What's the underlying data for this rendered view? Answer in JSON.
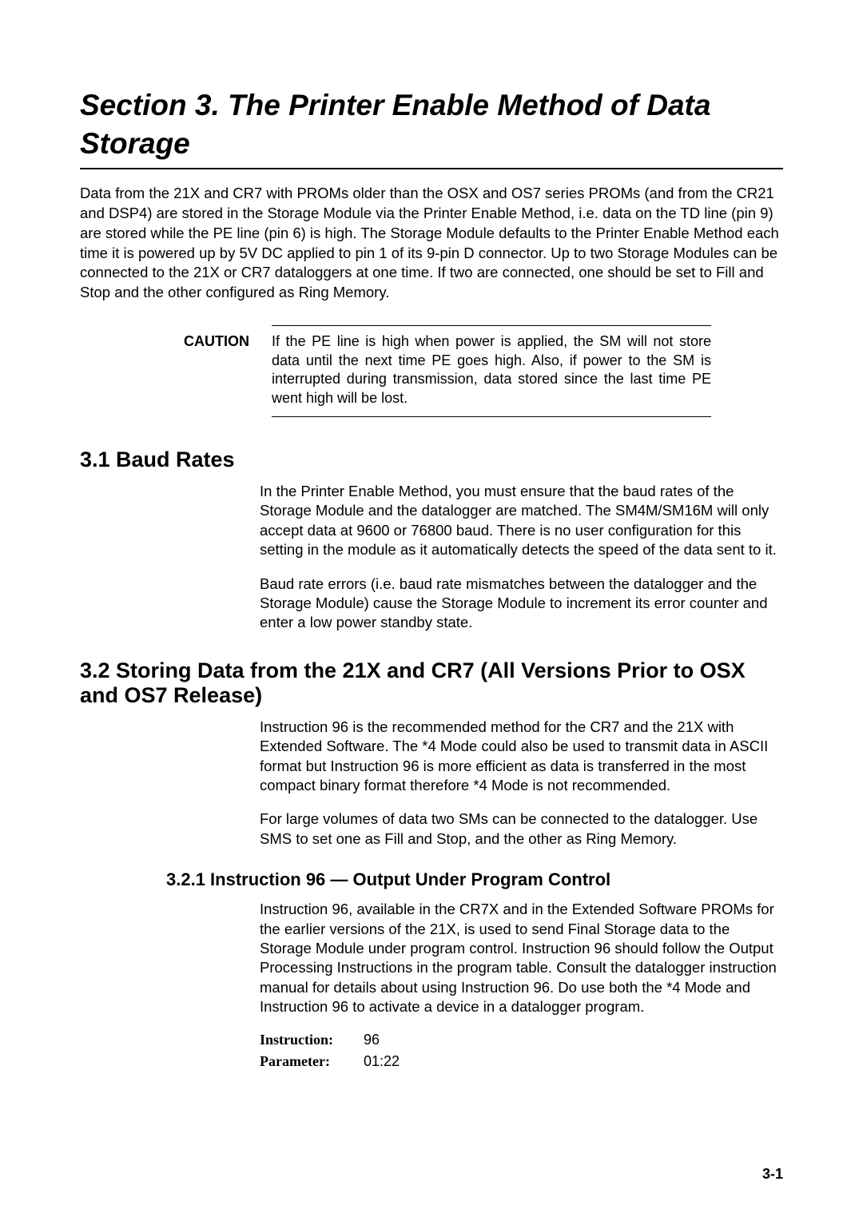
{
  "section_title": "Section 3.  The Printer Enable Method of Data Storage",
  "intro": "Data from the 21X and CR7 with PROMs older than the OSX and OS7 series PROMs (and from the CR21 and DSP4) are stored in the Storage Module via the Printer Enable Method, i.e. data on the TD line (pin 9) are stored while the PE line (pin 6) is high. The Storage Module defaults to the Printer Enable Method each time it is powered up by 5V DC applied to pin 1 of its 9-pin  D  connector. Up to two Storage Modules can be connected to the 21X or CR7 dataloggers at one time. If two are connected, one should be set to Fill and Stop and the other configured as Ring Memory.",
  "caution": {
    "label": "CAUTION",
    "text": "If the PE line is high when power is applied, the SM will not store data until the next time PE goes high. Also, if power to the SM is interrupted during transmission, data stored since the last time PE went high will be lost."
  },
  "s31": {
    "heading": "3.1  Baud Rates",
    "p1": "In the Printer Enable Method, you must ensure that the baud rates of the Storage Module and the datalogger are matched. The SM4M/SM16M will only accept data at 9600 or 76800 baud. There is no user configuration for this setting in the module as it automatically detects the speed of the data sent to it.",
    "p2": "Baud rate errors (i.e. baud rate mismatches between the datalogger and the Storage Module) cause the Storage Module to increment its error counter and enter a low power standby state."
  },
  "s32": {
    "heading": "3.2  Storing Data from the 21X and CR7 (All Versions Prior to OSX and OS7 Release)",
    "p1": "Instruction 96 is the recommended method for the CR7 and the 21X with Extended Software. The *4 Mode could also be used to transmit data in ASCII format but Instruction 96 is more efficient as data is transferred in the most compact binary format   therefore *4 Mode is not recommended.",
    "p2": "For large volumes of data two SMs can be connected to the datalogger. Use  SMS to set one as Fill and Stop, and the other as Ring Memory."
  },
  "s321": {
    "heading": "3.2.1  Instruction 96 — Output Under Program Control",
    "p1": "Instruction 96, available in the CR7X and in the Extended Software PROMs for the earlier versions of the 21X, is used to send Final Storage data to the Storage Module under program control. Instruction 96 should follow the Output Processing Instructions in the program table. Consult the datalogger instruction manual for details about using Instruction 96. Do use both the *4 Mode and Instruction 96 to activate a device in a datalogger program.",
    "instruction_label": "Instruction:",
    "instruction_value": "96",
    "parameter_label": "Parameter:",
    "parameter_value": "01:22"
  },
  "page_number": "3-1"
}
